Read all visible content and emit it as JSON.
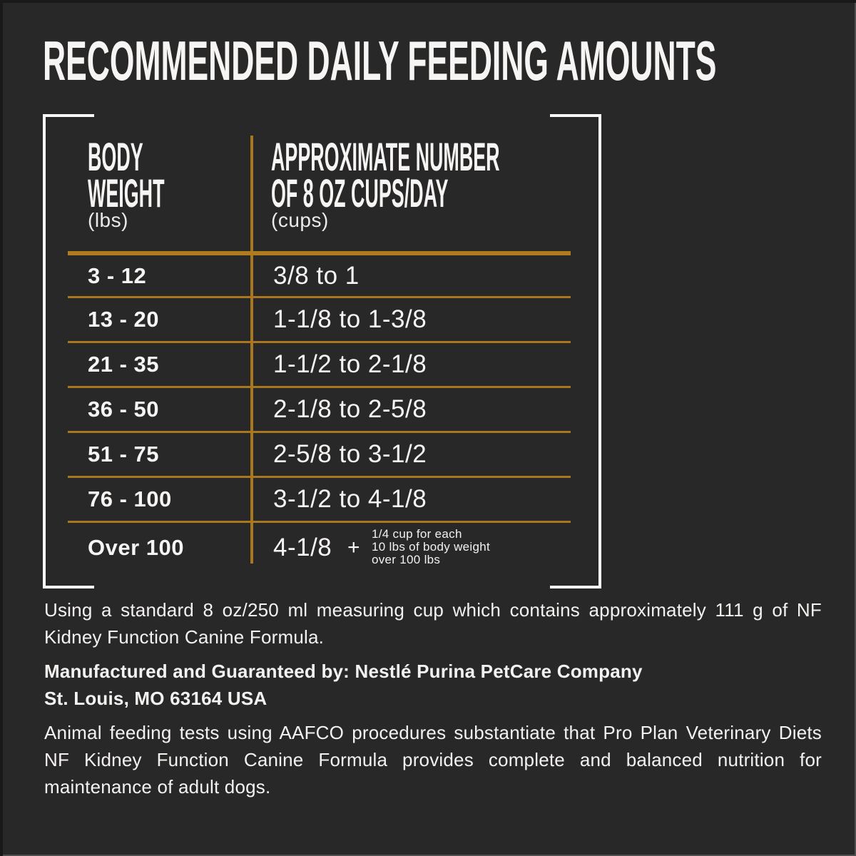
{
  "page": {
    "title": "RECOMMENDED DAILY FEEDING AMOUNTS"
  },
  "colors": {
    "background": "#292828",
    "accent_orange": "#a9771e",
    "text_white": "#f6f5f4"
  },
  "table": {
    "col1_header_lines": [
      "BODY",
      "WEIGHT"
    ],
    "col1_unit": "(lbs)",
    "col2_header_lines": [
      "APPROXIMATE NUMBER",
      "OF 8 OZ CUPS/DAY"
    ],
    "col2_unit": "(cups)",
    "rows": [
      {
        "weight": "3 - 12",
        "cups": "3/8 to 1"
      },
      {
        "weight": "13 - 20",
        "cups": "1-1/8 to 1-3/8"
      },
      {
        "weight": "21 - 35",
        "cups": "1-1/2 to 2-1/8"
      },
      {
        "weight": "36 - 50",
        "cups": "2-1/8 to 2-5/8"
      },
      {
        "weight": "51 - 75",
        "cups": "2-5/8 to 3-1/2"
      },
      {
        "weight": "76 - 100",
        "cups": "3-1/2 to 4-1/8"
      },
      {
        "weight": "Over 100",
        "cups": "4-1/8",
        "plus": "+",
        "note_lines": [
          "1/4 cup for each",
          "10 lbs of body weight",
          "over 100 lbs"
        ]
      }
    ]
  },
  "footer": {
    "p1": "Using a standard 8 oz/250 ml measuring cup which contains approximately 111 g of NF Kidney Function Canine Formula.",
    "p2_lines": [
      "Manufactured and Guaranteed by: Nestlé Purina PetCare Company",
      "St. Louis, MO 63164 USA"
    ],
    "p3": "Animal feeding tests using AAFCO procedures substantiate that Pro Plan Veterinary Diets NF Kidney Function Canine Formula provides complete and balanced nutrition for maintenance of adult dogs."
  }
}
